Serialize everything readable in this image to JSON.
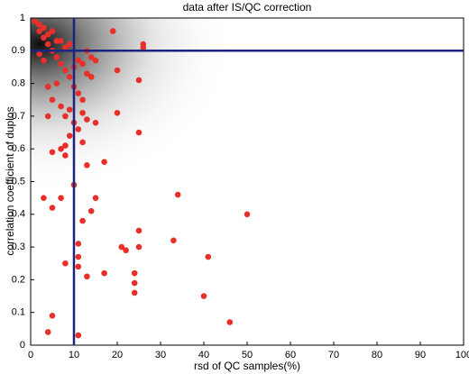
{
  "chart_data": {
    "type": "scatter",
    "title": "data after IS/QC correction",
    "x_label": "rsd of QC samples(%)",
    "y_label": "correlation coefficient of duplos",
    "xlim": [
      0,
      100
    ],
    "ylim": [
      0,
      1
    ],
    "xticks": [
      0,
      10,
      20,
      30,
      40,
      50,
      60,
      70,
      80,
      90,
      100
    ],
    "yticks": [
      0,
      0.1,
      0.2,
      0.3,
      0.4,
      0.5,
      0.6,
      0.7,
      0.8,
      0.9,
      1
    ],
    "color": "#e8302a",
    "line_color": "#1a237e",
    "vlines": [
      10
    ],
    "hlines": [
      0.9
    ],
    "x": [
      1,
      2,
      3,
      2,
      4,
      5,
      3,
      6,
      4,
      7,
      8,
      5,
      2,
      9,
      6,
      3,
      7,
      10,
      11,
      12,
      13,
      14,
      15,
      8,
      9,
      6,
      4,
      10,
      11,
      12,
      5,
      7,
      9,
      8,
      12,
      13,
      10,
      15,
      4,
      11,
      9,
      12,
      8,
      7,
      8,
      5,
      13,
      17,
      10,
      3,
      5,
      7,
      14,
      15,
      12,
      11,
      11,
      8,
      11,
      13,
      17,
      4,
      5,
      11,
      19,
      20,
      20,
      25,
      26,
      26,
      25,
      21,
      22,
      25,
      25,
      24,
      24,
      24,
      33,
      34,
      41,
      40,
      46,
      50,
      13,
      14
    ],
    "y": [
      0.99,
      0.98,
      0.97,
      0.96,
      0.95,
      0.96,
      0.94,
      0.93,
      0.92,
      0.93,
      0.91,
      0.9,
      0.89,
      0.92,
      0.88,
      0.87,
      0.86,
      0.85,
      0.87,
      0.86,
      0.83,
      0.82,
      0.87,
      0.84,
      0.82,
      0.8,
      0.79,
      0.79,
      0.77,
      0.75,
      0.75,
      0.73,
      0.72,
      0.7,
      0.71,
      0.69,
      0.68,
      0.68,
      0.7,
      0.66,
      0.64,
      0.62,
      0.61,
      0.6,
      0.58,
      0.59,
      0.55,
      0.56,
      0.49,
      0.45,
      0.42,
      0.45,
      0.41,
      0.45,
      0.38,
      0.31,
      0.27,
      0.25,
      0.24,
      0.21,
      0.22,
      0.04,
      0.09,
      0.03,
      0.96,
      0.84,
      0.71,
      0.81,
      0.92,
      0.91,
      0.65,
      0.3,
      0.29,
      0.35,
      0.3,
      0.22,
      0.19,
      0.16,
      0.32,
      0.46,
      0.27,
      0.15,
      0.07,
      0.4,
      0.9,
      0.88
    ]
  }
}
